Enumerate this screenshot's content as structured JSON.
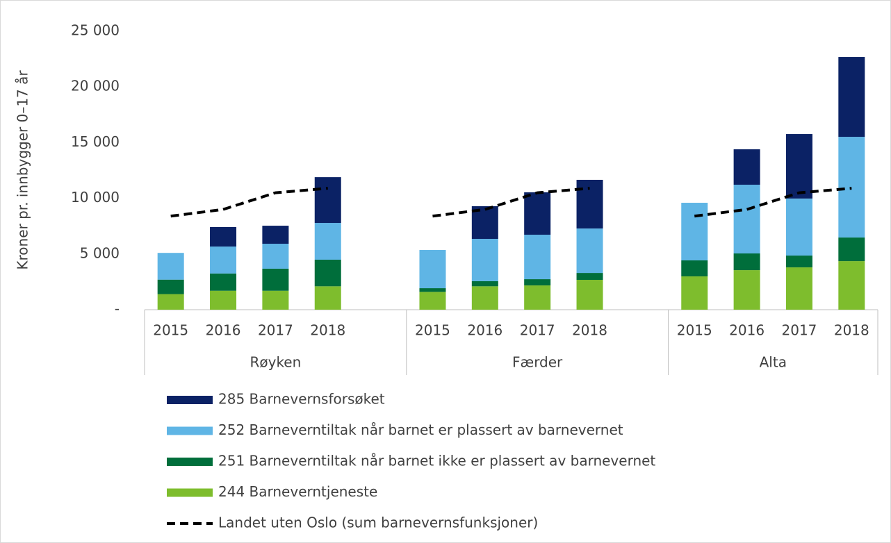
{
  "chart_data": {
    "type": "bar",
    "stacked": true,
    "y_label": "Kroner pr. innbygger 0–17 år",
    "categories": [
      "2015",
      "2016",
      "2017",
      "2018",
      null,
      "2015",
      "2016",
      "2017",
      "2018",
      null,
      "2015",
      "2016",
      "2017",
      "2018"
    ],
    "category_groups": [
      "Røyken",
      "Færder",
      "Alta"
    ],
    "ylim": [
      0,
      25000
    ],
    "yticks": [
      {
        "value": 0,
        "label": "-"
      },
      {
        "value": 5000,
        "label": "5 000"
      },
      {
        "value": 10000,
        "label": "10 000"
      },
      {
        "value": 15000,
        "label": "15 000"
      },
      {
        "value": 20000,
        "label": "20 000"
      },
      {
        "value": 25000,
        "label": "25 000"
      }
    ],
    "legend": "bottom",
    "series": [
      {
        "name": "285 Barnevernsforsøket",
        "color": "#0b2265",
        "values": [
          null,
          1750,
          1620,
          4110,
          null,
          null,
          2930,
          3810,
          4370,
          null,
          null,
          3180,
          5790,
          7170
        ]
      },
      {
        "name": "252 Barneverntiltak når barnet er plassert av barnevernet",
        "color": "#5fb5e5",
        "values": [
          2400,
          2420,
          2240,
          3300,
          null,
          3430,
          3800,
          3990,
          3990,
          null,
          5170,
          6170,
          5120,
          9040
        ]
      },
      {
        "name": "251 Barneverntiltak når barnet ikke er plassert av barnevernet",
        "color": "#006e3b",
        "values": [
          1300,
          1550,
          1980,
          2390,
          null,
          330,
          460,
          560,
          620,
          null,
          1440,
          1500,
          1060,
          2120
        ]
      },
      {
        "name": "244 Barneverntjeneste",
        "color": "#7ebd2d",
        "values": [
          1400,
          1700,
          1700,
          2100,
          null,
          1600,
          2100,
          2180,
          2680,
          null,
          2990,
          3550,
          3800,
          4360
        ]
      },
      {
        "name": "Landet uten Oslo (sum barnevernsfunksjoner)",
        "color": "#000000",
        "type": "line",
        "dashed": true,
        "values": [
          8400,
          9000,
          10500,
          10900,
          null,
          8400,
          9000,
          10500,
          10900,
          null,
          8400,
          9000,
          10500,
          10900
        ]
      }
    ]
  }
}
